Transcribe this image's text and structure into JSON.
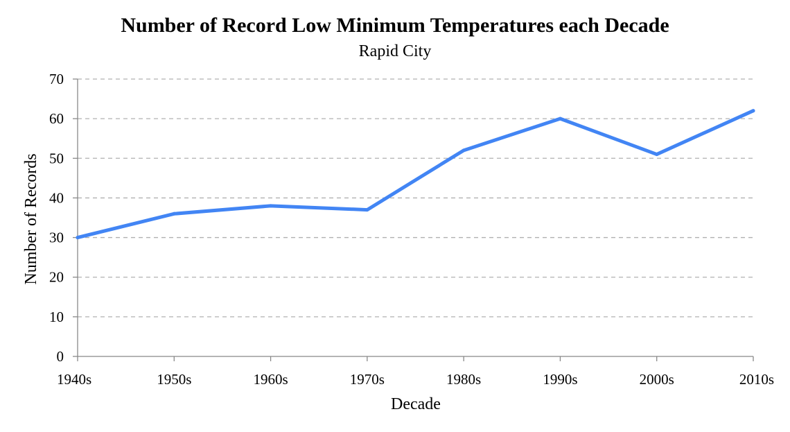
{
  "chart_data": {
    "type": "line",
    "title": "Number of Record Low Minimum Temperatures each Decade",
    "subtitle": "Rapid City",
    "xlabel": "Decade",
    "ylabel": "Number of Records",
    "categories": [
      "1940s",
      "1950s",
      "1960s",
      "1970s",
      "1980s",
      "1990s",
      "2000s",
      "2010s"
    ],
    "series": [
      {
        "values": [
          30,
          36,
          38,
          37,
          52,
          60,
          51,
          62
        ],
        "color": "#4285f4"
      }
    ],
    "ylim": [
      0,
      70
    ],
    "yticks": [
      0,
      10,
      20,
      30,
      40,
      50,
      60,
      70
    ],
    "grid": "horizontal dashed",
    "legend": "none"
  }
}
